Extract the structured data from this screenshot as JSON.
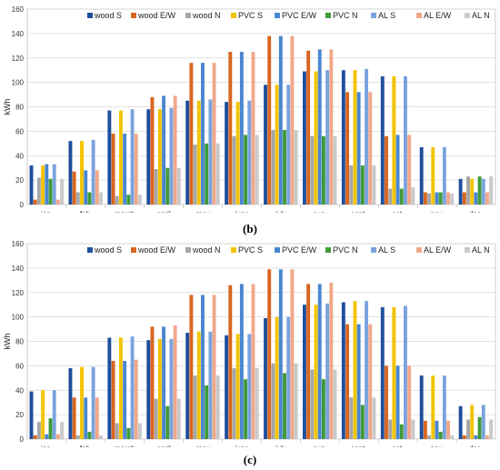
{
  "chart_data": [
    {
      "type": "bar",
      "panel": "(b)",
      "ylabel": "kWh",
      "ylim": [
        0,
        160
      ],
      "yticks": [
        0,
        20,
        40,
        60,
        80,
        100,
        120,
        140,
        160
      ],
      "grid": true,
      "legend": "top-right",
      "categories": [
        "jan.",
        "feb.",
        "march",
        "april",
        "may",
        "june",
        "july",
        "aug.",
        "sept.",
        "oct.",
        "nov.",
        "dec."
      ],
      "series": [
        {
          "name": "wood S",
          "color": "#1f4e9c",
          "values": [
            32,
            52,
            77,
            78,
            85,
            84,
            98,
            109,
            110,
            105,
            47,
            21
          ]
        },
        {
          "name": "wood E/W",
          "color": "#d9661f",
          "values": [
            4,
            27,
            58,
            88,
            116,
            125,
            138,
            126,
            92,
            56,
            10,
            10
          ]
        },
        {
          "name": "wood N",
          "color": "#a6a6a6",
          "values": [
            22,
            10,
            7,
            29,
            49,
            56,
            61,
            56,
            32,
            13,
            9,
            23
          ]
        },
        {
          "name": "PVC S",
          "color": "#f2c300",
          "values": [
            32,
            52,
            77,
            78,
            85,
            84,
            98,
            109,
            110,
            105,
            47,
            21
          ]
        },
        {
          "name": "PVC E/W",
          "color": "#4a86d0",
          "values": [
            33,
            28,
            58,
            89,
            116,
            125,
            138,
            127,
            92,
            57,
            10,
            10
          ]
        },
        {
          "name": "PVC N",
          "color": "#3f9a3a",
          "values": [
            21,
            10,
            8,
            30,
            50,
            57,
            61,
            56,
            32,
            13,
            10,
            23
          ]
        },
        {
          "name": "AL S",
          "color": "#7aa3dd",
          "values": [
            33,
            53,
            78,
            79,
            86,
            85,
            98,
            110,
            111,
            105,
            47,
            21
          ]
        },
        {
          "name": "AL E/W",
          "color": "#f0a88a",
          "values": [
            4,
            28,
            58,
            89,
            116,
            125,
            138,
            127,
            92,
            57,
            10,
            10
          ]
        },
        {
          "name": "AL N",
          "color": "#c9c9c9",
          "values": [
            21,
            10,
            8,
            30,
            50,
            57,
            61,
            56,
            32,
            14,
            9,
            23
          ]
        }
      ]
    },
    {
      "type": "bar",
      "panel": "(c)",
      "ylabel": "kWh",
      "ylim": [
        0,
        160
      ],
      "yticks": [
        0,
        20,
        40,
        60,
        80,
        100,
        120,
        140,
        160
      ],
      "grid": true,
      "legend": "top-right",
      "categories": [
        "jan.",
        "feb.",
        "march",
        "april",
        "may",
        "june",
        "july",
        "aug.",
        "sept.",
        "oct.",
        "nov.",
        "dec."
      ],
      "series": [
        {
          "name": "wood S",
          "color": "#1f4e9c",
          "values": [
            39,
            58,
            83,
            81,
            87,
            85,
            99,
            110,
            112,
            108,
            52,
            27
          ]
        },
        {
          "name": "wood E/W",
          "color": "#d9661f",
          "values": [
            3,
            34,
            64,
            92,
            118,
            126,
            139,
            127,
            94,
            60,
            15,
            3
          ]
        },
        {
          "name": "wood N",
          "color": "#a6a6a6",
          "values": [
            14,
            3,
            13,
            33,
            52,
            58,
            62,
            57,
            34,
            16,
            3,
            16
          ]
        },
        {
          "name": "PVC S",
          "color": "#f2c300",
          "values": [
            40,
            59,
            83,
            82,
            88,
            86,
            100,
            110,
            113,
            108,
            52,
            28
          ]
        },
        {
          "name": "PVC E/W",
          "color": "#4a86d0",
          "values": [
            4,
            34,
            64,
            92,
            118,
            127,
            139,
            127,
            94,
            60,
            15,
            3
          ]
        },
        {
          "name": "PVC N",
          "color": "#3f9a3a",
          "values": [
            17,
            6,
            9,
            27,
            44,
            49,
            54,
            49,
            28,
            12,
            6,
            18
          ]
        },
        {
          "name": "AL S",
          "color": "#7aa3dd",
          "values": [
            40,
            59,
            84,
            82,
            88,
            86,
            100,
            111,
            113,
            109,
            52,
            28
          ]
        },
        {
          "name": "AL E/W",
          "color": "#f0a88a",
          "values": [
            4,
            34,
            65,
            93,
            118,
            127,
            139,
            128,
            94,
            60,
            15,
            3
          ]
        },
        {
          "name": "AL N",
          "color": "#c9c9c9",
          "values": [
            14,
            3,
            13,
            33,
            52,
            58,
            62,
            57,
            34,
            16,
            3,
            16
          ]
        }
      ]
    }
  ]
}
